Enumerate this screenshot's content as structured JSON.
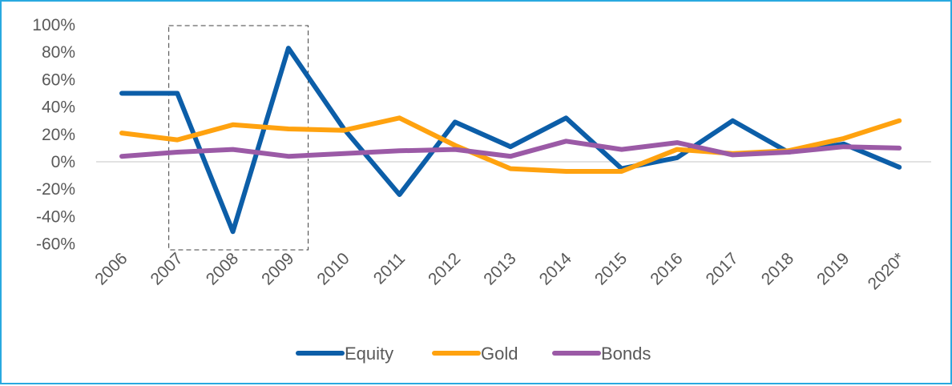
{
  "chart_data": {
    "type": "line",
    "title": "",
    "xlabel": "",
    "ylabel": "",
    "categories": [
      "2006",
      "2007",
      "2008",
      "2009",
      "2010",
      "2011",
      "2012",
      "2013",
      "2014",
      "2015",
      "2016",
      "2017",
      "2018",
      "2019",
      "2020*"
    ],
    "y_ticks": [
      "100%",
      "80%",
      "60%",
      "40%",
      "20%",
      "0%",
      "-20%",
      "-40%",
      "-60%"
    ],
    "ylim": [
      -60,
      100
    ],
    "y_unit": "%",
    "grid": false,
    "legend_position": "bottom",
    "highlight_range": [
      "2007",
      "2009"
    ],
    "series": [
      {
        "name": "Equity",
        "color": "#0c5ea8",
        "values": [
          50,
          50,
          -51,
          83,
          24,
          -24,
          29,
          11,
          32,
          -5,
          3,
          30,
          7,
          13,
          -4
        ]
      },
      {
        "name": "Gold",
        "color": "#ffa20f",
        "values": [
          21,
          16,
          27,
          24,
          23,
          32,
          12,
          -5,
          -7,
          -7,
          9,
          6,
          8,
          17,
          30
        ]
      },
      {
        "name": "Bonds",
        "color": "#9b5aa6",
        "values": [
          4,
          7,
          9,
          4,
          6,
          8,
          9,
          4,
          15,
          9,
          14,
          5,
          7,
          11,
          10
        ]
      }
    ]
  }
}
